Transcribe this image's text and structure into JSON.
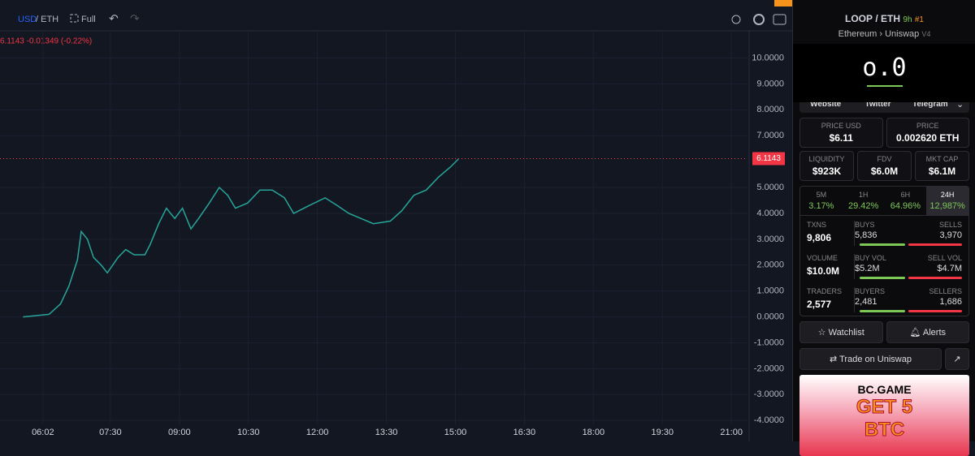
{
  "toolbar": {
    "base": "USD",
    "quote": "/ ETH",
    "full": "Full"
  },
  "chart_data": {
    "type": "line",
    "price_header": "6.1143 -0.01349 (-0.22%)",
    "series": [
      {
        "color": "#26a69a",
        "x": [
          336,
          370,
          385,
          396,
          407,
          412,
          420,
          428,
          438,
          446,
          460,
          470,
          481,
          495,
          502,
          513,
          523,
          534,
          544,
          555,
          565,
          579,
          592,
          603,
          613,
          629,
          645,
          661,
          677,
          689,
          709,
          730,
          746,
          761,
          777,
          793,
          815,
          830,
          846,
          862,
          878,
          894,
          904
        ],
        "values": [
          0.0,
          0.1,
          0.5,
          1.2,
          2.2,
          3.3,
          3.0,
          2.3,
          2.0,
          1.7,
          2.3,
          2.6,
          2.4,
          2.4,
          2.8,
          3.6,
          4.2,
          3.8,
          4.2,
          3.4,
          3.8,
          4.4,
          5.0,
          4.7,
          4.2,
          4.4,
          4.9,
          4.9,
          4.6,
          4.0,
          4.3,
          4.6,
          4.3,
          4.0,
          3.8,
          3.6,
          3.7,
          4.1,
          4.7,
          4.9,
          5.4,
          5.8,
          6.1
        ]
      }
    ],
    "last_price": 6.1143,
    "last_color": "#f23645",
    "xlim": [
      306,
      1281
    ],
    "xticks": [
      {
        "value": 362,
        "label": "06:02"
      },
      {
        "value": 450,
        "label": "07:30"
      },
      {
        "value": 540,
        "label": "09:00"
      },
      {
        "value": 630,
        "label": "10:30"
      },
      {
        "value": 720,
        "label": "12:00"
      },
      {
        "value": 810,
        "label": "13:30"
      },
      {
        "value": 900,
        "label": "15:00"
      },
      {
        "value": 990,
        "label": "16:30"
      },
      {
        "value": 1080,
        "label": "18:00"
      },
      {
        "value": 1170,
        "label": "19:30"
      },
      {
        "value": 1260,
        "label": "21:00"
      }
    ],
    "ylim": [
      -4.15,
      11.05
    ],
    "yticks": [
      {
        "value": 10,
        "label": "10.0000"
      },
      {
        "value": 9,
        "label": "9.0000"
      },
      {
        "value": 8,
        "label": "8.0000"
      },
      {
        "value": 7,
        "label": "7.0000"
      },
      {
        "value": 5,
        "label": "5.0000"
      },
      {
        "value": 4,
        "label": "4.0000"
      },
      {
        "value": 3,
        "label": "3.0000"
      },
      {
        "value": 2,
        "label": "2.0000"
      },
      {
        "value": 1,
        "label": "1.0000"
      },
      {
        "value": 0,
        "label": "0.0000"
      },
      {
        "value": -1,
        "label": "-1.0000"
      },
      {
        "value": -2,
        "label": "-2.0000"
      },
      {
        "value": -3,
        "label": "-3.0000"
      },
      {
        "value": -4,
        "label": "-4.0000"
      }
    ]
  },
  "panel": {
    "token": "LOOP",
    "quote": "/ ETH",
    "age": "9h",
    "rank": "#1",
    "chain": "Ethereum",
    "dex": "Uniswap",
    "version": "V4",
    "logo": "o.0",
    "links": [
      "Website",
      "Twitter",
      "Telegram"
    ],
    "prices": [
      {
        "label": "PRICE USD",
        "value": "$6.11"
      },
      {
        "label": "PRICE",
        "value": "0.002620 ETH"
      }
    ],
    "metrics": [
      {
        "label": "LIQUIDITY",
        "value": "$923K"
      },
      {
        "label": "FDV",
        "value": "$6.0M"
      },
      {
        "label": "MKT CAP",
        "value": "$6.1M"
      }
    ],
    "tabs": [
      {
        "label": "5M",
        "value": "3.17%"
      },
      {
        "label": "1H",
        "value": "29.42%"
      },
      {
        "label": "6H",
        "value": "64.96%"
      },
      {
        "label": "24H",
        "value": "12,987%"
      }
    ],
    "stats": [
      [
        {
          "label": "TXNS",
          "value": "9,806"
        },
        {
          "label": "BUYS",
          "value": "5,836"
        },
        {
          "label": "SELLS",
          "value": "3,970"
        }
      ],
      [
        {
          "label": "VOLUME",
          "value": "$10.0M"
        },
        {
          "label": "BUY VOL",
          "value": "$5.2M"
        },
        {
          "label": "SELL VOL",
          "value": "$4.7M"
        }
      ],
      [
        {
          "label": "TRADERS",
          "value": "2,577"
        },
        {
          "label": "BUYERS",
          "value": "2,481"
        },
        {
          "label": "SELLERS",
          "value": "1,686"
        }
      ]
    ],
    "watchlist": "Watchlist",
    "alerts": "Alerts",
    "trade": "Trade on Uniswap",
    "ad": {
      "brand": "BC.GAME",
      "line1": "GET 5",
      "line2": "BTC"
    }
  }
}
